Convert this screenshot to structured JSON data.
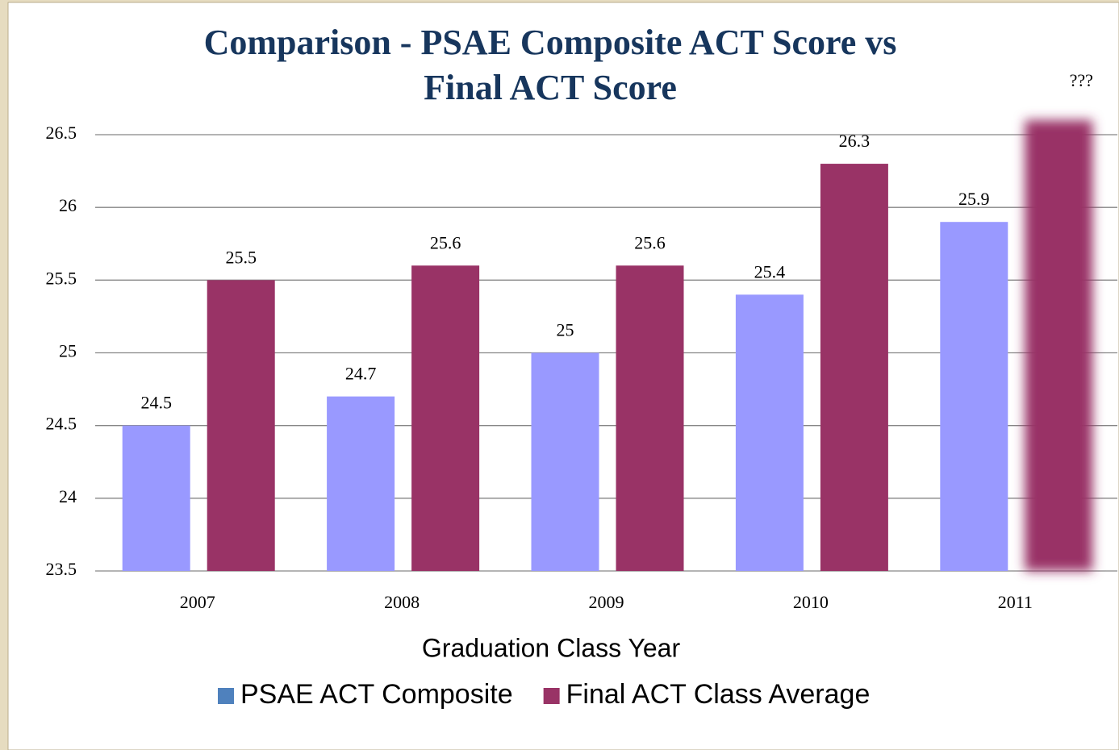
{
  "chart_data": {
    "type": "bar",
    "title": [
      "Comparison - PSAE Composite ACT Score vs",
      "Final  ACT Score"
    ],
    "x_label": "Graduation Class Year",
    "categories": [
      "2007",
      "2008",
      "2009",
      "2010",
      "2011"
    ],
    "series": [
      {
        "name": "PSAE ACT Composite",
        "color": "#9999ff",
        "values": [
          24.5,
          24.7,
          25,
          25.4,
          25.9
        ]
      },
      {
        "name": "Final ACT Class Average",
        "color": "#993366",
        "values": [
          25.5,
          25.6,
          25.6,
          26.3,
          26.6
        ],
        "value_labels": [
          "25.5",
          "25.6",
          "25.6",
          "26.3",
          "???"
        ]
      }
    ],
    "ylim": [
      23.5,
      26.5
    ],
    "yticks": [
      23.5,
      24,
      24.5,
      25,
      25.5,
      26,
      26.5
    ],
    "grid": true,
    "legend": "bottom"
  }
}
